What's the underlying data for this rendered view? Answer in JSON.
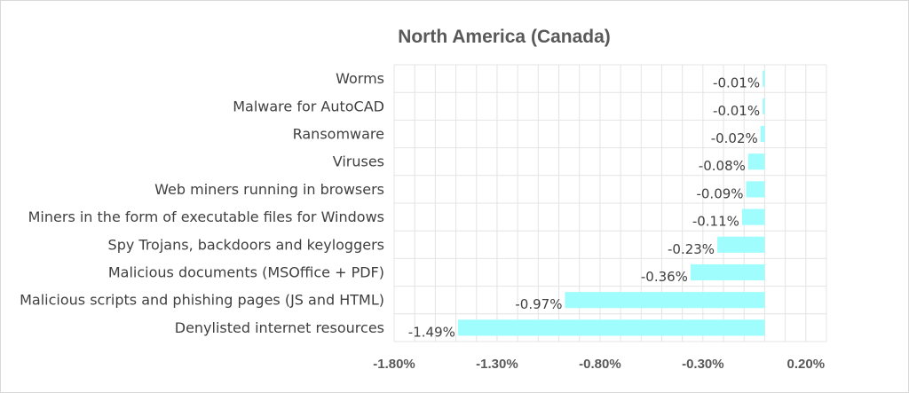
{
  "chart_data": {
    "type": "bar",
    "orientation": "horizontal",
    "title": "North America (Canada)",
    "categories": [
      "Worms",
      "Malware for AutoCAD",
      "Ransomware",
      "Viruses",
      "Web miners running in browsers",
      "Miners in the form of executable files for Windows",
      "Spy Trojans, backdoors and keyloggers",
      "Malicious documents (MSOffice + PDF)",
      "Malicious scripts and phishing pages (JS and HTML)",
      "Denylisted internet resources"
    ],
    "values": [
      -0.01,
      -0.01,
      -0.02,
      -0.08,
      -0.09,
      -0.11,
      -0.23,
      -0.36,
      -0.97,
      -1.49
    ],
    "data_labels": [
      "-0.01%",
      "-0.01%",
      "-0.02%",
      "-0.08%",
      "-0.09%",
      "-0.11%",
      "-0.23%",
      "-0.36%",
      "-0.97%",
      "-1.49%"
    ],
    "xticks": [
      -1.8,
      -1.3,
      -0.8,
      -0.3,
      0.2
    ],
    "xtick_labels": [
      "-1.80%",
      "-1.30%",
      "-0.80%",
      "-0.30%",
      "0.20%"
    ],
    "xlim": [
      -1.8,
      0.3
    ],
    "bar_color": "#9ffdfd",
    "grid": true,
    "legend": "none"
  }
}
